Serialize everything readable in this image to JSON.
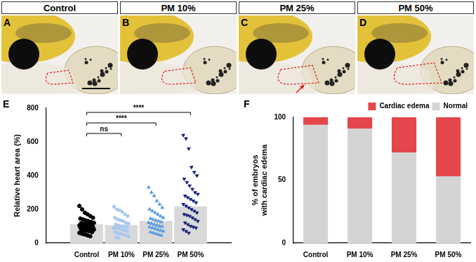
{
  "figure": {
    "panels": [
      {
        "letter": "A",
        "title": "Control"
      },
      {
        "letter": "B",
        "title": "PM 10%"
      },
      {
        "letter": "C",
        "title": "PM 25%"
      },
      {
        "letter": "D",
        "title": "PM 50%"
      }
    ],
    "chart_letters": [
      "E",
      "F"
    ]
  },
  "chart_data": [
    {
      "type": "bar",
      "categories": [
        "Control",
        "PM 10%",
        "PM 25%",
        "PM 50%"
      ],
      "values": [
        110,
        105,
        130,
        215
      ],
      "color": "#d9d9d9",
      "y_label": "Relative heart area (%)",
      "ylim": [
        0,
        800
      ],
      "yticks": [
        0,
        200,
        400,
        600,
        800
      ],
      "points": [
        {
          "color": "#000000",
          "marker": "circle",
          "values": [
            220,
            200,
            180,
            170,
            160,
            150,
            145,
            140,
            135,
            130,
            125,
            120,
            118,
            115,
            112,
            110,
            108,
            105,
            102,
            100,
            100,
            98,
            95,
            92,
            90,
            88,
            85,
            82,
            80,
            78,
            75,
            72,
            70,
            65,
            60,
            55,
            50,
            45,
            40
          ]
        },
        {
          "color": "#a9c9ee",
          "marker": "square",
          "values": [
            215,
            200,
            195,
            185,
            170,
            160,
            150,
            140,
            135,
            130,
            120,
            115,
            110,
            105,
            100,
            100,
            95,
            90,
            88,
            85,
            80,
            75,
            70,
            65,
            60,
            55,
            50,
            45,
            40,
            35,
            30
          ]
        },
        {
          "color": "#5b9de0",
          "marker": "triangle",
          "values": [
            330,
            300,
            280,
            250,
            230,
            210,
            200,
            190,
            180,
            170,
            160,
            150,
            145,
            140,
            135,
            130,
            125,
            120,
            115,
            110,
            105,
            100,
            98,
            95,
            90,
            85,
            80,
            75,
            70,
            65,
            60,
            55,
            50,
            45
          ]
        },
        {
          "color": "#1a237e",
          "marker": "triangle-down",
          "values": [
            640,
            620,
            560,
            450,
            420,
            400,
            380,
            360,
            340,
            320,
            300,
            290,
            280,
            270,
            260,
            250,
            240,
            230,
            220,
            210,
            200,
            190,
            180,
            170,
            165,
            160,
            150,
            140,
            130,
            120,
            110,
            100,
            95,
            90,
            80,
            70,
            60
          ]
        }
      ],
      "annotations": [
        {
          "from": "Control",
          "to": "PM 10%",
          "label": "ns"
        },
        {
          "from": "Control",
          "to": "PM 25%",
          "label": "****"
        },
        {
          "from": "Control",
          "to": "PM 50%",
          "label": "****"
        }
      ]
    },
    {
      "type": "bar",
      "stacked": true,
      "categories": [
        "Control",
        "PM 10%",
        "PM 25%",
        "PM 50%"
      ],
      "series": [
        {
          "name": "Normal",
          "color": "#d4d4d4",
          "values": [
            94,
            91,
            72,
            53
          ]
        },
        {
          "name": "Cardiac edema",
          "color": "#e3474b",
          "values": [
            6,
            9,
            28,
            47
          ]
        }
      ],
      "y_label": "% of embryos\nwith cardiac edema",
      "ylim": [
        0,
        100
      ],
      "yticks": [
        0,
        50,
        100
      ],
      "legend": "upper right"
    }
  ]
}
